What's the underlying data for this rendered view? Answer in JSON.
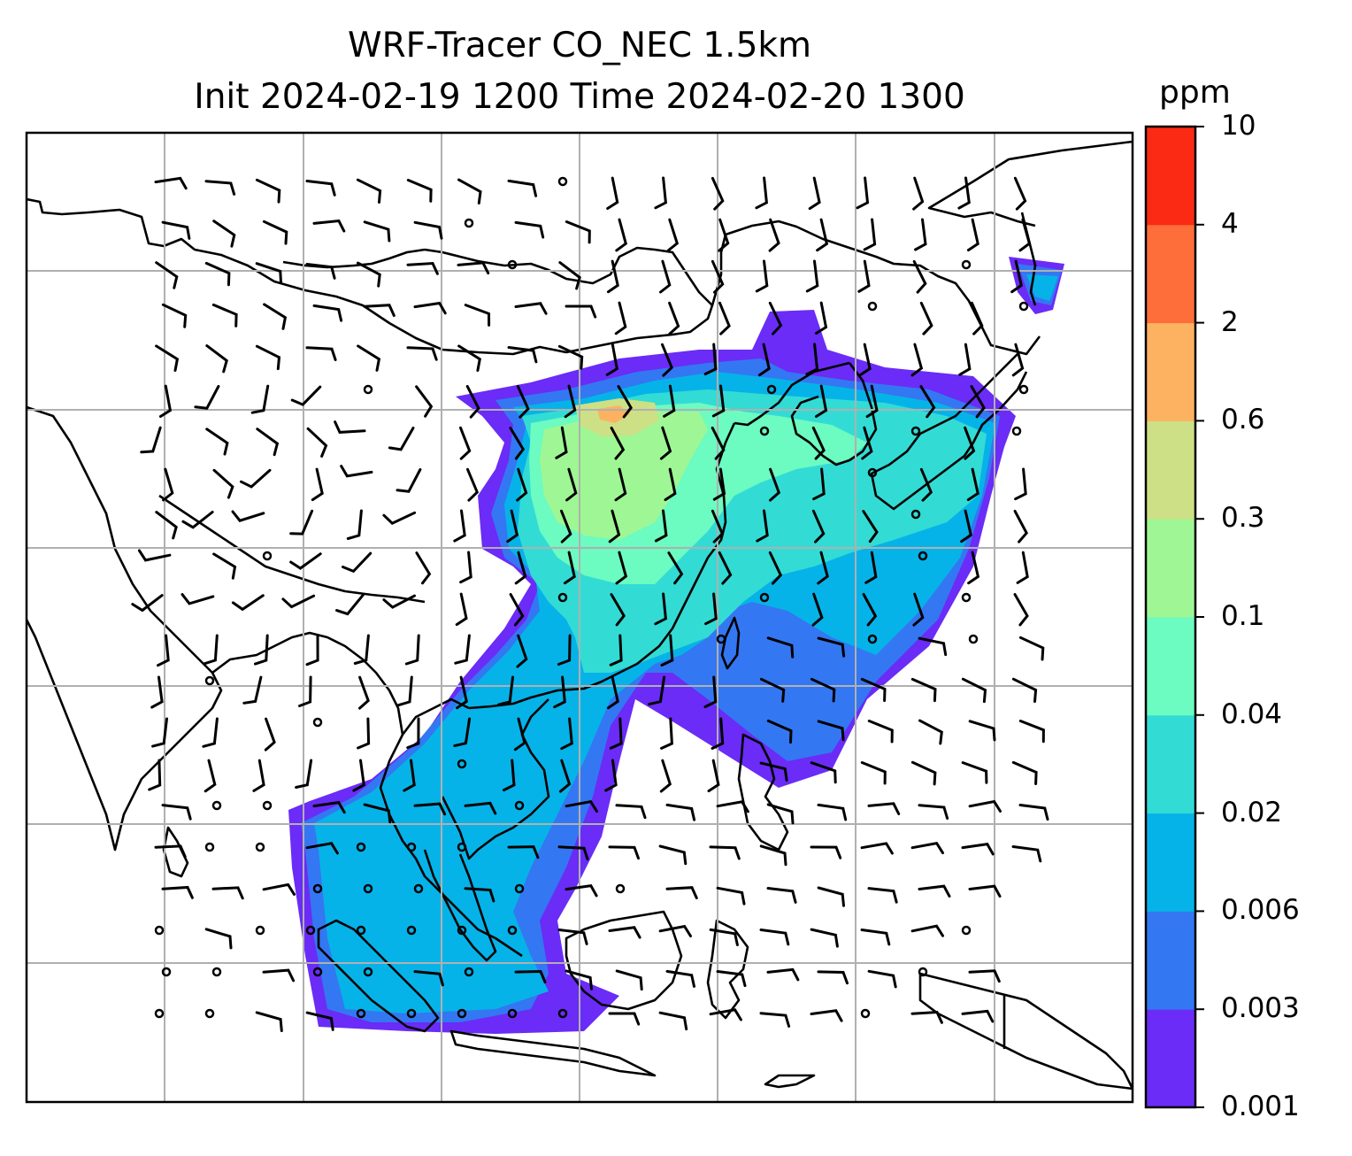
{
  "title": {
    "line1": "WRF-Tracer CO_NEC 1.5km",
    "line2": "Init 2024-02-19 1200 Time 2024-02-20 1300"
  },
  "colorbar": {
    "unit": "ppm",
    "ticks": [
      "0.001",
      "0.003",
      "0.006",
      "0.02",
      "0.04",
      "0.1",
      "0.3",
      "0.6",
      "2",
      "4",
      "10"
    ],
    "colors": [
      "#6a2cf6",
      "#3477f2",
      "#06b3e8",
      "#32dcd5",
      "#6cfbc0",
      "#9ef794",
      "#cde085",
      "#fdb262",
      "#fd6e3b",
      "#fa2a14"
    ]
  },
  "map": {
    "gridlines": true,
    "features": [
      "coastlines",
      "country-borders",
      "wind-barbs",
      "tracer-concentration"
    ],
    "tracer": "CO_NEC"
  }
}
